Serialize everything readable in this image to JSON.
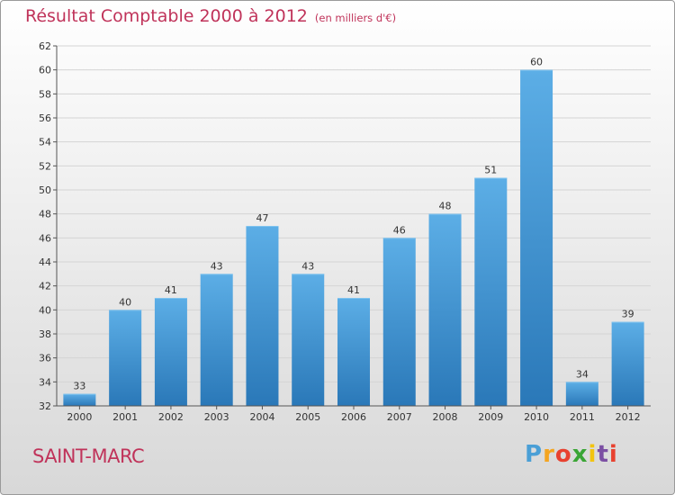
{
  "header": {
    "title": "Résultat Comptable 2000 à 2012",
    "unit": "(en milliers d'€)"
  },
  "footer": {
    "commune": "SAINT-MARC",
    "brand_letters": [
      "P",
      "r",
      "o",
      "x",
      "i",
      "t",
      "i"
    ]
  },
  "colors": {
    "title": "#c0335a",
    "bar_top": "#5caee6",
    "bar_bottom": "#2a78b8",
    "grid": "#d4d4d4",
    "brand": [
      "#4a9fd6",
      "#f4a521",
      "#e8412f",
      "#3aa535",
      "#f2c40f",
      "#7b4fa3",
      "#e8412f"
    ]
  },
  "chart_data": {
    "type": "bar",
    "title": "Résultat Comptable 2000 à 2012",
    "subtitle": "(en milliers d'€)",
    "categories": [
      "2000",
      "2001",
      "2002",
      "2003",
      "2004",
      "2005",
      "2006",
      "2007",
      "2008",
      "2009",
      "2010",
      "2011",
      "2012"
    ],
    "values": [
      33,
      40,
      41,
      43,
      47,
      43,
      41,
      46,
      48,
      51,
      60,
      34,
      39
    ],
    "xlabel": "",
    "ylabel": "",
    "ylim": [
      32,
      62
    ],
    "yticks": [
      32,
      34,
      36,
      38,
      40,
      42,
      44,
      46,
      48,
      50,
      52,
      54,
      56,
      58,
      60,
      62
    ],
    "grid": true,
    "legend": "none"
  }
}
